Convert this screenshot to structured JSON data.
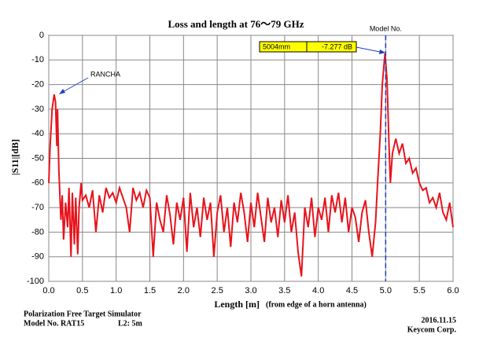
{
  "chart_data": {
    "type": "line",
    "title": "Loss and length at 76～79 GHz",
    "xlabel": "Length [m]",
    "xlabel_note": "(from edge of a horn antenna)",
    "ylabel": "|S11|[dB]",
    "xlim": [
      0,
      6
    ],
    "ylim": [
      -100,
      0
    ],
    "xticks": [
      {
        "value": 0,
        "label": "0.0"
      },
      0.5,
      {
        "value": 1,
        "label": "1.0"
      },
      1.5,
      {
        "value": 2,
        "label": "2.0"
      },
      2.5,
      {
        "value": 3,
        "label": "3.0"
      },
      3.5,
      {
        "value": 4,
        "label": "4.0"
      },
      4.5,
      {
        "value": 5,
        "label": "5.0"
      },
      5.5,
      {
        "value": 6,
        "label": "6.0"
      }
    ],
    "yticks": [
      0,
      -10,
      -20,
      -30,
      -40,
      -50,
      -60,
      -70,
      -80,
      -90,
      -100
    ],
    "grid": true,
    "series": [
      {
        "color": "#e8141c",
        "x": [
          0,
          0.02,
          0.05,
          0.08,
          0.1,
          0.12,
          0.13,
          0.15,
          0.18,
          0.2,
          0.22,
          0.25,
          0.28,
          0.3,
          0.33,
          0.35,
          0.38,
          0.4,
          0.43,
          0.45,
          0.48,
          0.5,
          0.55,
          0.6,
          0.65,
          0.7,
          0.75,
          0.8,
          0.85,
          0.9,
          0.95,
          1,
          1.05,
          1.1,
          1.15,
          1.2,
          1.25,
          1.3,
          1.35,
          1.4,
          1.45,
          1.5,
          1.55,
          1.6,
          1.65,
          1.7,
          1.75,
          1.8,
          1.85,
          1.9,
          1.95,
          2,
          2.05,
          2.1,
          2.15,
          2.2,
          2.25,
          2.3,
          2.35,
          2.4,
          2.45,
          2.5,
          2.55,
          2.6,
          2.65,
          2.7,
          2.75,
          2.8,
          2.85,
          2.9,
          2.95,
          3,
          3.05,
          3.1,
          3.15,
          3.2,
          3.25,
          3.3,
          3.35,
          3.4,
          3.45,
          3.5,
          3.55,
          3.6,
          3.65,
          3.7,
          3.75,
          3.8,
          3.85,
          3.9,
          3.95,
          4,
          4.05,
          4.1,
          4.15,
          4.2,
          4.25,
          4.3,
          4.35,
          4.4,
          4.45,
          4.5,
          4.55,
          4.6,
          4.65,
          4.7,
          4.75,
          4.8,
          4.85,
          4.88,
          4.92,
          4.95,
          4.99,
          5.02,
          5.05,
          5.07,
          5.1,
          5.15,
          5.2,
          5.25,
          5.3,
          5.35,
          5.4,
          5.45,
          5.5,
          5.55,
          5.6,
          5.65,
          5.7,
          5.75,
          5.8,
          5.85,
          5.9,
          5.95,
          6
        ],
        "values": [
          -60,
          -45,
          -30,
          -24,
          -27,
          -45,
          -30,
          -55,
          -75,
          -65,
          -83,
          -68,
          -78,
          -62,
          -90,
          -64,
          -85,
          -66,
          -89,
          -70,
          -60,
          -67,
          -65,
          -70,
          -63,
          -80,
          -65,
          -72,
          -62,
          -66,
          -64,
          -68,
          -62,
          -66,
          -70,
          -80,
          -62,
          -67,
          -64,
          -70,
          -63,
          -66,
          -90,
          -68,
          -75,
          -80,
          -65,
          -73,
          -85,
          -68,
          -75,
          -66,
          -88,
          -64,
          -78,
          -70,
          -82,
          -66,
          -75,
          -68,
          -90,
          -72,
          -65,
          -80,
          -70,
          -86,
          -68,
          -76,
          -64,
          -72,
          -84,
          -68,
          -78,
          -64,
          -74,
          -84,
          -66,
          -76,
          -70,
          -82,
          -67,
          -76,
          -65,
          -80,
          -72,
          -88,
          -98,
          -70,
          -78,
          -66,
          -82,
          -70,
          -75,
          -66,
          -80,
          -65,
          -72,
          -64,
          -76,
          -66,
          -80,
          -70,
          -74,
          -84,
          -72,
          -67,
          -80,
          -90,
          -76,
          -60,
          -40,
          -20,
          -7.3,
          -18,
          -45,
          -60,
          -48,
          -42,
          -48,
          -44,
          -52,
          -50,
          -56,
          -54,
          -60,
          -63,
          -62,
          -68,
          -66,
          -70,
          -64,
          -72,
          -75,
          -68,
          -78
        ]
      }
    ],
    "annotations": {
      "source": "RANCHA",
      "marker": {
        "text": "Model No.",
        "x": 5
      },
      "readout": {
        "distance": "5004mm",
        "loss": "-7.277  dB"
      }
    },
    "footer": {
      "line1": "Polarization  Free Target Simulator",
      "model": "Model No. RAT15",
      "l2": "L2: 5m",
      "date": "2016.11.15",
      "company": "Keycom Corp."
    }
  }
}
